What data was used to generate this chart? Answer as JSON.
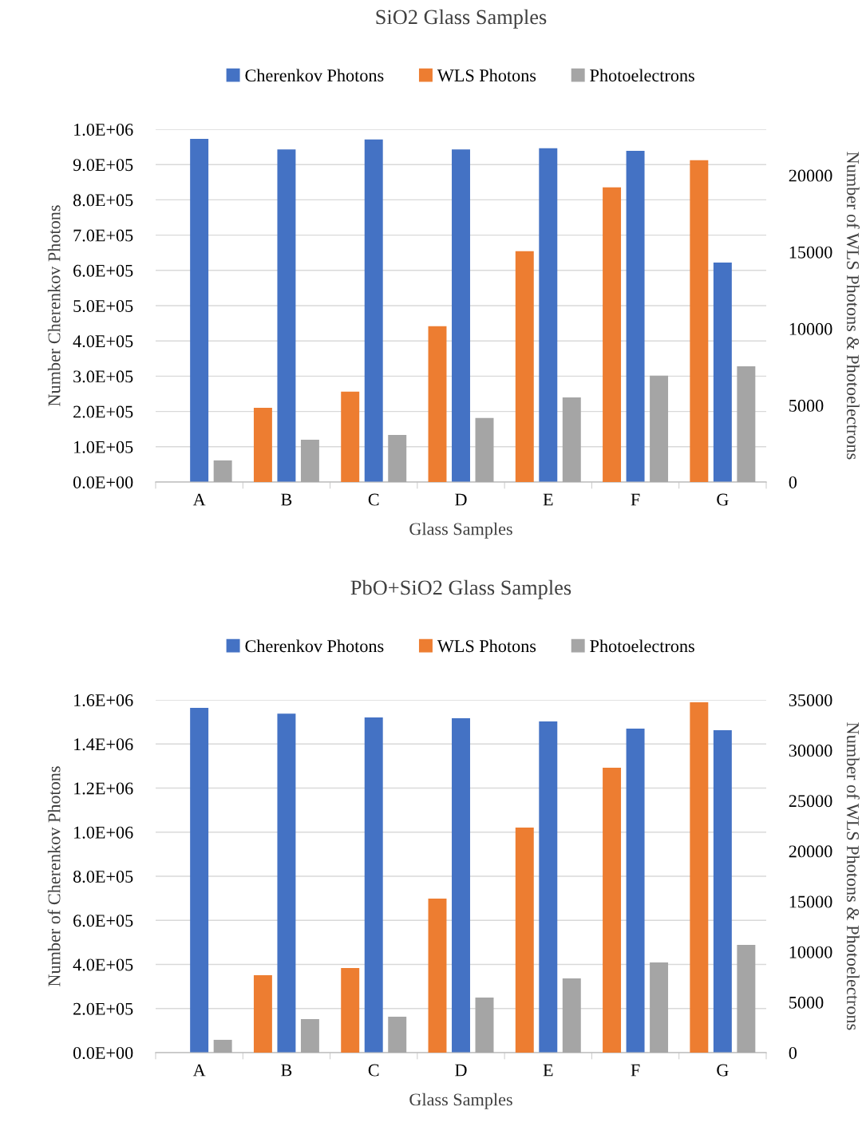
{
  "chart_data": [
    {
      "type": "bar",
      "title": "SiO2 Glass Samples",
      "xlabel": "Glass Samples",
      "ylabel": "Number Cherenkov Photons",
      "y2label": "Number of WLS Photons & Photoelectrons",
      "categories": [
        "A",
        "B",
        "C",
        "D",
        "E",
        "F",
        "G"
      ],
      "series": [
        {
          "name": "WLS Photons",
          "color": "#ed7d31",
          "axis": "y2",
          "values": [
            null,
            4840,
            5890,
            10160,
            15050,
            19220,
            20990
          ]
        },
        {
          "name": "Cherenkov Photons",
          "color": "#4472c4",
          "axis": "y",
          "values": [
            973000,
            943000,
            971000,
            943000,
            946000,
            939000,
            622000
          ]
        },
        {
          "name": "Photoelectrons",
          "color": "#a5a5a5",
          "axis": "y2",
          "values": [
            1410,
            2760,
            3070,
            4170,
            5520,
            6930,
            7550
          ]
        }
      ],
      "ylim": [
        0,
        1000000
      ],
      "yticks": [
        {
          "value": 0,
          "label": "0.0E+00"
        },
        {
          "value": 100000,
          "label": "1.0E+05"
        },
        {
          "value": 200000,
          "label": "2.0E+05"
        },
        {
          "value": 300000,
          "label": "3.0E+05"
        },
        {
          "value": 400000,
          "label": "4.0E+05"
        },
        {
          "value": 500000,
          "label": "5.0E+05"
        },
        {
          "value": 600000,
          "label": "6.0E+05"
        },
        {
          "value": 700000,
          "label": "7.0E+05"
        },
        {
          "value": 800000,
          "label": "8.0E+05"
        },
        {
          "value": 900000,
          "label": "9.0E+05"
        },
        {
          "value": 1000000,
          "label": "1.0E+06"
        }
      ],
      "y2lim": [
        0,
        23000
      ],
      "y2ticks": [
        0,
        5000,
        10000,
        15000,
        20000
      ],
      "grid": "y",
      "legend": "top"
    },
    {
      "type": "bar",
      "title": "PbO+SiO2 Glass Samples",
      "xlabel": "Glass Samples",
      "ylabel": "Number of Cherenkov Photons",
      "y2label": "Number of WLS Photons & Photoelectrons",
      "categories": [
        "A",
        "B",
        "C",
        "D",
        "E",
        "F",
        "G"
      ],
      "series": [
        {
          "name": "WLS Photons",
          "color": "#ed7d31",
          "axis": "y2",
          "values": [
            null,
            7680,
            8390,
            15280,
            22330,
            28270,
            34760
          ]
        },
        {
          "name": "Cherenkov Photons",
          "color": "#4472c4",
          "axis": "y",
          "values": [
            1564000,
            1538000,
            1520000,
            1517000,
            1502000,
            1470000,
            1462000
          ]
        },
        {
          "name": "Photoelectrons",
          "color": "#a5a5a5",
          "axis": "y2",
          "values": [
            1270,
            3330,
            3560,
            5460,
            7360,
            8950,
            10690
          ]
        }
      ],
      "ylim": [
        0,
        1600000
      ],
      "yticks": [
        {
          "value": 0,
          "label": "0.0E+00"
        },
        {
          "value": 200000,
          "label": "2.0E+05"
        },
        {
          "value": 400000,
          "label": "4.0E+05"
        },
        {
          "value": 600000,
          "label": "6.0E+05"
        },
        {
          "value": 800000,
          "label": "8.0E+05"
        },
        {
          "value": 1000000,
          "label": "1.0E+06"
        },
        {
          "value": 1200000,
          "label": "1.2E+06"
        },
        {
          "value": 1400000,
          "label": "1.4E+06"
        },
        {
          "value": 1600000,
          "label": "1.6E+06"
        }
      ],
      "y2lim": [
        0,
        35000
      ],
      "y2ticks": [
        0,
        5000,
        10000,
        15000,
        20000,
        25000,
        30000,
        35000
      ],
      "grid": "y",
      "legend": "top"
    }
  ]
}
